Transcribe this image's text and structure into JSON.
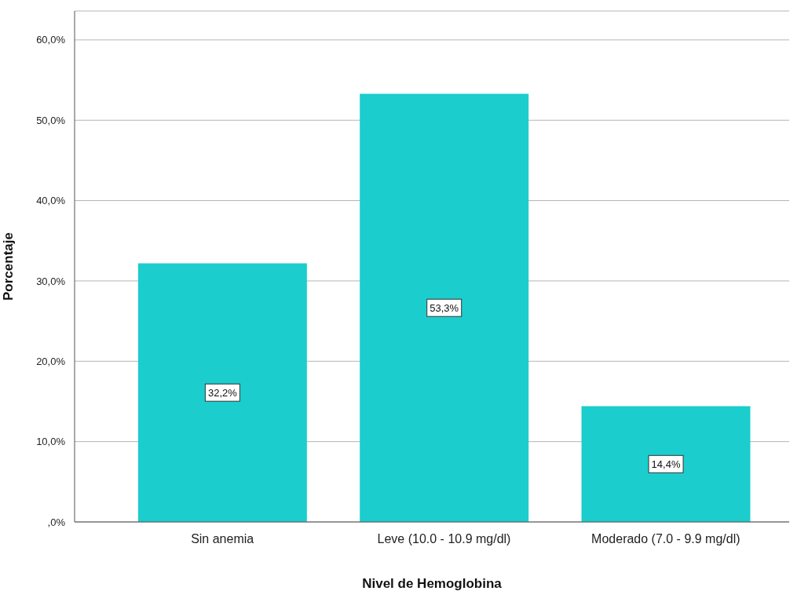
{
  "chart_data": {
    "type": "bar",
    "xlabel": "Nivel de Hemoglobina",
    "ylabel": "Porcentaje",
    "categories": [
      "Sin anemia",
      "Leve (10.0 - 10.9 mg/dl)",
      "Moderado (7.0 - 9.9 mg/dl)"
    ],
    "values": [
      32.2,
      53.3,
      14.4
    ],
    "color": "#1ccdcd",
    "value_labels": [
      "32,2%",
      "53,3%",
      "14,4%"
    ],
    "ylim": [
      0,
      63.6
    ],
    "yticks": [
      {
        "value": 0,
        "label": ",0%"
      },
      {
        "value": 10,
        "label": "10,0%"
      },
      {
        "value": 20,
        "label": "20,0%"
      },
      {
        "value": 30,
        "label": "30,0%"
      },
      {
        "value": 40,
        "label": "40,0%"
      },
      {
        "value": 50,
        "label": "50,0%"
      },
      {
        "value": 60,
        "label": "60,0%"
      }
    ],
    "grid": "y"
  }
}
